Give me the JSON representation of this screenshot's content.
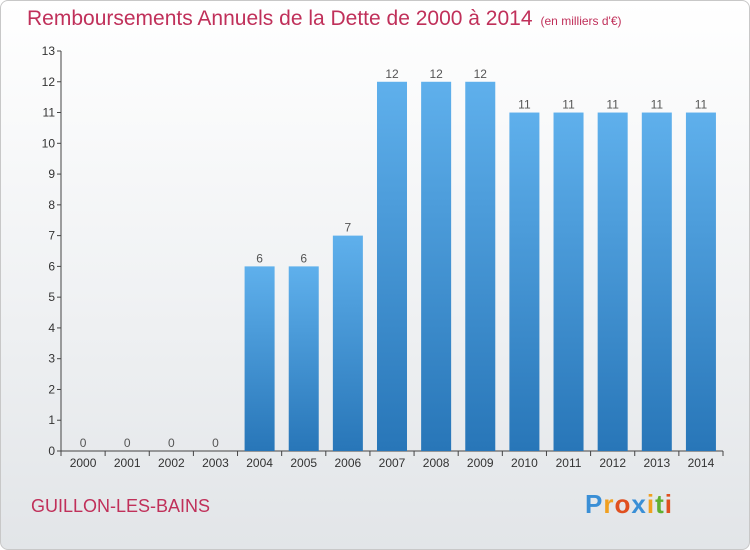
{
  "chart_data": {
    "type": "bar",
    "title": "Remboursements Annuels de la Dette de 2000 à 2014",
    "subtitle": "(en milliers d'€)",
    "categories": [
      "2000",
      "2001",
      "2002",
      "2003",
      "2004",
      "2005",
      "2006",
      "2007",
      "2008",
      "2009",
      "2010",
      "2011",
      "2012",
      "2013",
      "2014"
    ],
    "values": [
      0,
      0,
      0,
      0,
      6,
      6,
      7,
      12,
      12,
      12,
      11,
      11,
      11,
      11,
      11
    ],
    "ylim": [
      0,
      13
    ],
    "yticks": [
      0,
      1,
      2,
      3,
      4,
      5,
      6,
      7,
      8,
      9,
      10,
      11,
      12,
      13
    ],
    "grid": false,
    "bar_color": "#4a9edf"
  },
  "place_name": "GUILLON-LES-BAINS",
  "logo": {
    "letters": [
      "P",
      "r",
      "o",
      "x",
      "i",
      "t",
      "i"
    ],
    "colors": [
      "#3a8fd6",
      "#f0a020",
      "#e05020",
      "#3a8fd6",
      "#f0a020",
      "#60b030",
      "#e05020"
    ]
  }
}
